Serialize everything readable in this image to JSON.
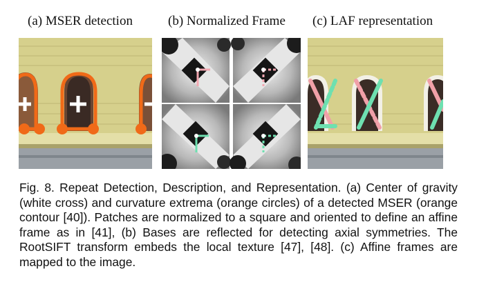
{
  "figure": {
    "panels": [
      {
        "id": "a",
        "title": "(a) MSER detection"
      },
      {
        "id": "b",
        "title": "(b) Normalized Frame"
      },
      {
        "id": "c",
        "title": "(c) LAF representation"
      }
    ],
    "caption": "Fig. 8. Repeat Detection, Description, and Representation. (a) Center of gravity (white cross) and curvature extrema (orange circles) of a detected MSER (orange contour [40]). Patches are normalized to a square and oriented to define an affine frame as in [41], (b) Bases are reflected for detecting axial symmetries. The RootSIFT transform embeds the local texture [47], [48]. (c) Affine frames are mapped to the image."
  },
  "colors": {
    "facade": "#d7d28e",
    "mser_contour": "#f06a18",
    "cross": "#ffffff",
    "laf_pink": "#f0a0a8",
    "laf_green": "#6ee0b0"
  }
}
